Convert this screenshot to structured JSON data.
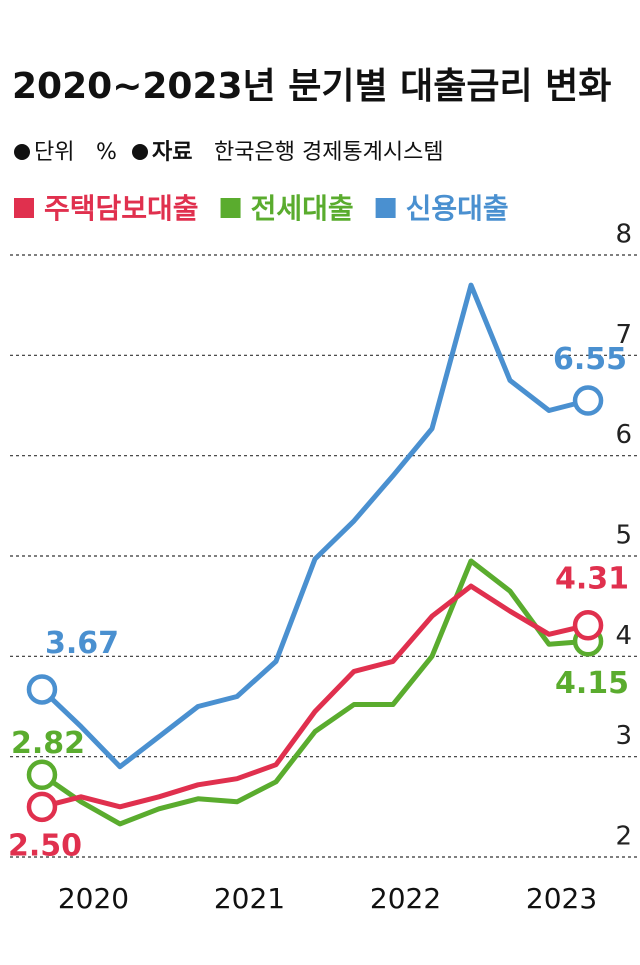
{
  "chart_data": {
    "type": "line",
    "title": "2020~2023년 분기별 대출금리 변화",
    "unit_label": "단위",
    "unit": "%",
    "source_label": "자료",
    "source": "한국은행 경제통계시스템",
    "x": [
      2020.125,
      2020.375,
      2020.625,
      2020.875,
      2021.125,
      2021.375,
      2021.625,
      2021.875,
      2022.125,
      2022.375,
      2022.625,
      2022.875,
      2023.125,
      2023.375,
      2023.625
    ],
    "xlim": [
      2019.856,
      2023.958
    ],
    "xticks": [
      {
        "value": 2020.5,
        "label": "2020"
      },
      {
        "value": 2021.5,
        "label": "2021"
      },
      {
        "value": 2022.5,
        "label": "2022"
      },
      {
        "value": 2023.5,
        "label": "2023"
      }
    ],
    "ylim": [
      2,
      8
    ],
    "yticks": [
      2,
      3,
      4,
      5,
      6,
      7,
      8
    ],
    "grid": true,
    "series": [
      {
        "name": "신용대출",
        "color": "#4a90d0",
        "values": [
          3.67,
          3.3,
          2.9,
          3.2,
          3.5,
          3.6,
          3.95,
          4.97,
          5.35,
          5.8,
          6.27,
          7.7,
          6.75,
          6.45,
          6.55
        ],
        "value_labels": [
          "3.67",
          null,
          null,
          null,
          null,
          null,
          null,
          null,
          null,
          null,
          null,
          null,
          null,
          null,
          "6.55"
        ]
      },
      {
        "name": "전세대출",
        "color": "#5aac2e",
        "values": [
          2.82,
          2.55,
          2.33,
          2.48,
          2.58,
          2.55,
          2.75,
          3.25,
          3.52,
          3.52,
          4.0,
          4.95,
          4.65,
          4.12,
          4.15
        ],
        "value_labels": [
          "2.82",
          null,
          null,
          null,
          null,
          null,
          null,
          null,
          null,
          null,
          null,
          null,
          null,
          null,
          "4.15"
        ]
      },
      {
        "name": "주택담보대출",
        "color": "#e0304e",
        "values": [
          2.5,
          2.6,
          2.5,
          2.6,
          2.72,
          2.78,
          2.92,
          3.45,
          3.85,
          3.95,
          4.4,
          4.7,
          4.45,
          4.22,
          4.31
        ],
        "value_labels": [
          "2.50",
          null,
          null,
          null,
          null,
          null,
          null,
          null,
          null,
          null,
          null,
          null,
          null,
          null,
          "4.31"
        ]
      }
    ],
    "legend_order": [
      2,
      1,
      0
    ]
  }
}
